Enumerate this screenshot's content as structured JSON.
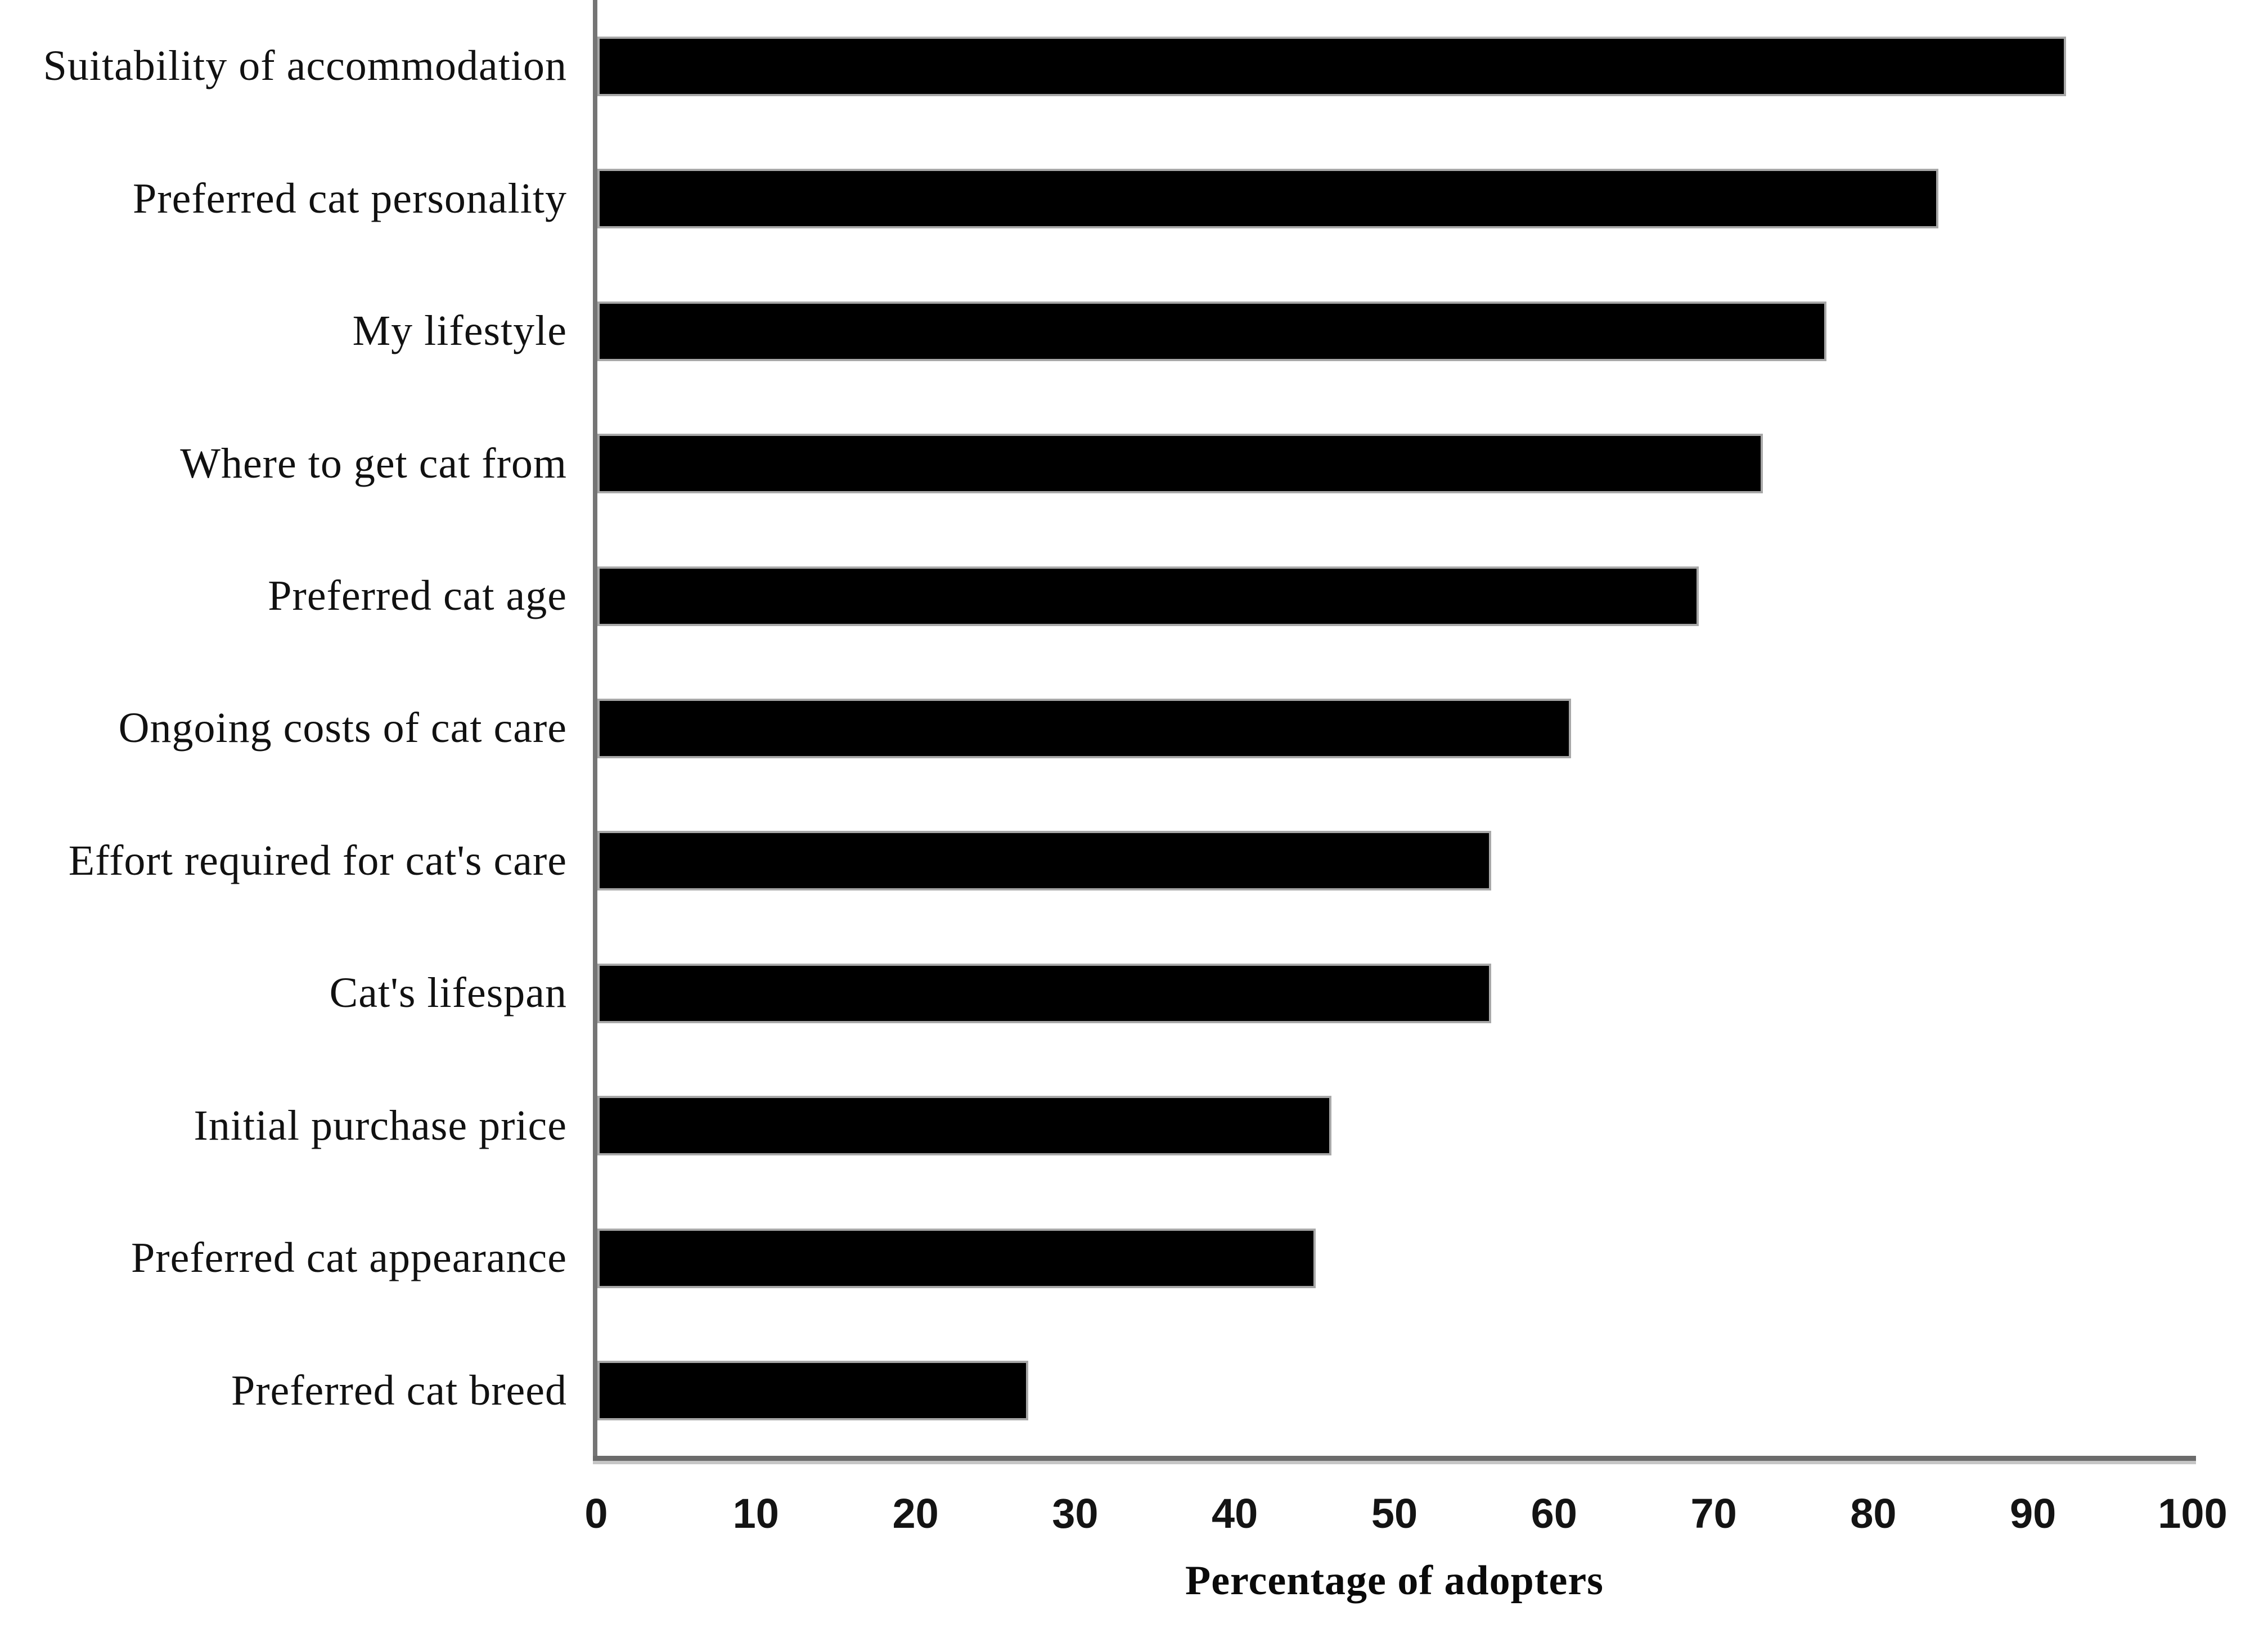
{
  "chart_data": {
    "type": "bar",
    "orientation": "horizontal",
    "title": "",
    "xlabel": "Percentage of adopters",
    "ylabel": "",
    "xlim": [
      0,
      100
    ],
    "x_ticks": [
      0,
      10,
      20,
      30,
      40,
      50,
      60,
      70,
      80,
      90,
      100
    ],
    "grid": false,
    "legend": false,
    "bar_color": "#000000",
    "axis_line_color": "#6b6b6b",
    "categories": [
      "Suitability of accommodation",
      "Preferred cat personality",
      "My lifestyle",
      "Where to get cat from",
      "Preferred cat age",
      "Ongoing costs of cat care",
      "Effort required for cat's care",
      "Cat's lifespan",
      "Initial purchase price",
      "Preferred cat appearance",
      "Preferred cat breed"
    ],
    "values": [
      92,
      84,
      77,
      73,
      69,
      61,
      56,
      56,
      46,
      45,
      27
    ]
  }
}
